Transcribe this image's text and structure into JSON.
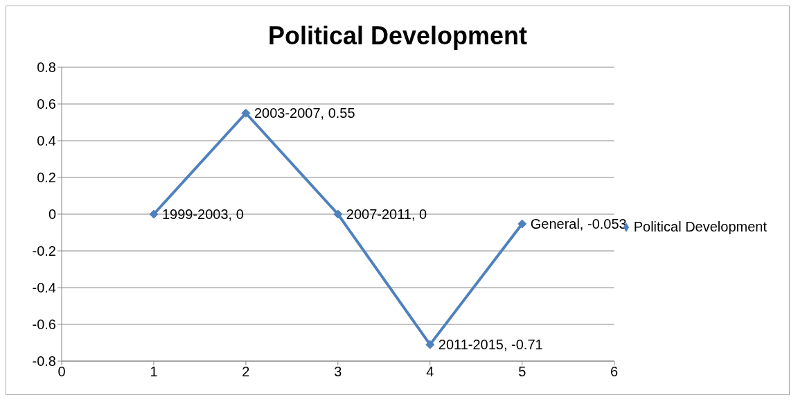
{
  "chart_data": {
    "type": "line",
    "title": "Political Development",
    "x": [
      1,
      2,
      3,
      4,
      5
    ],
    "series": [
      {
        "name": "Political Development",
        "color": "#4f81bd",
        "values": [
          0,
          0.55,
          0,
          -0.71,
          -0.053
        ],
        "value_labels": [
          "1999-2003, 0",
          "2003-2007, 0.55",
          "2007-2011, 0",
          "2011-2015, -0.71",
          "General, -0.053"
        ]
      }
    ],
    "xlim": [
      0,
      6
    ],
    "xticks": [
      0,
      1,
      2,
      3,
      4,
      5,
      6
    ],
    "ylim": [
      -0.8,
      0.8
    ],
    "yticks": [
      -0.8,
      -0.6,
      -0.4,
      -0.2,
      0,
      0.2,
      0.4,
      0.6,
      0.8
    ],
    "grid": "y",
    "legend": "right",
    "marker": "diamond",
    "line_style": "solid"
  }
}
